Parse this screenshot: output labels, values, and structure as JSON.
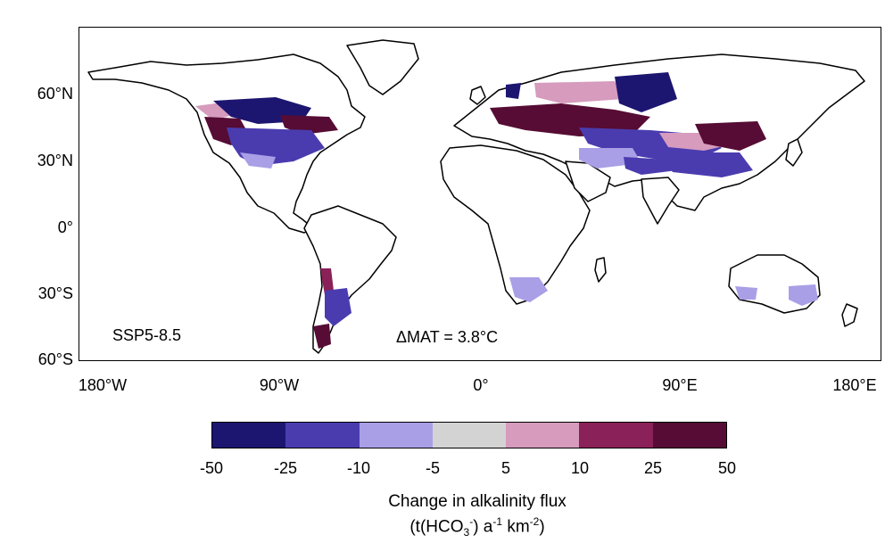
{
  "map": {
    "scenario_label": "SSP5-8.5",
    "delta_mat_label": "ΔMAT = 3.8°C",
    "lat_ticks": [
      "60°N",
      "30°N",
      "0°",
      "30°S",
      "60°S"
    ],
    "lon_ticks": [
      "180°W",
      "90°W",
      "0°",
      "90°E",
      "180°E"
    ]
  },
  "colorbar": {
    "colors": [
      "#1c1670",
      "#4a3caf",
      "#a99fe6",
      "#d3d3d3",
      "#d69bbd",
      "#8a2158",
      "#560c34"
    ],
    "tick_labels": [
      "-50",
      "-25",
      "-10",
      "-5",
      "5",
      "10",
      "25",
      "50"
    ],
    "title": "Change in alkalinity flux",
    "units_prefix": "(t(HCO",
    "units_sub": "3",
    "units_minus": "-",
    "units_mid": ") a",
    "units_sup1": "-1",
    "units_km": " km",
    "units_sup2": "-2",
    "units_suffix": ")"
  }
}
